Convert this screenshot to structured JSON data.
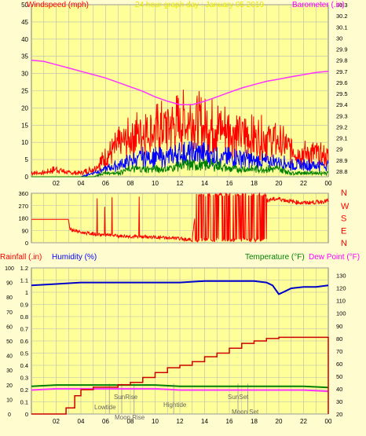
{
  "colors": {
    "background": "#fffdd0",
    "plot_bg": "#ffff99",
    "grid": "#b8b8b8",
    "axis": "#7f7f7f",
    "tick_text": "#000000",
    "wind_label": "#ff0000",
    "title": "#e6e600",
    "baro_label": "#ff00ff",
    "nwsen": "#ff0000",
    "rain_label": "#ff0000",
    "humidity_label": "#0000ff",
    "temp_label": "#008000",
    "dew_label": "#ff00ff",
    "event_text": "#666666"
  },
  "chart_data": [
    {
      "id": "wind_baro",
      "type": "line",
      "title": "24 hour graph day : January 05 2019",
      "left_label": "Windspeed (mph)",
      "right_label": "Barometer (.in)",
      "x_tick_labels": [
        "02",
        "04",
        "06",
        "08",
        "10",
        "12",
        "14",
        "16",
        "18",
        "20",
        "22",
        "00"
      ],
      "y_left_ticks": [
        "0",
        "5",
        "10",
        "15",
        "20",
        "25",
        "30",
        "35",
        "40",
        "45",
        "50"
      ],
      "y_left_range": [
        0,
        50
      ],
      "y_right_ticks": [
        "28.8",
        "28.9",
        "29",
        "29.1",
        "29.2",
        "29.3",
        "29.4",
        "29.5",
        "29.6",
        "29.7",
        "29.8",
        "29.9",
        "30",
        "30.1",
        "30.2",
        "30.3"
      ],
      "y_right_range": [
        28.75,
        30.3
      ],
      "grid": true,
      "series": [
        {
          "role": "gust",
          "color": "#ff0000",
          "x": [
            0,
            1,
            2,
            3,
            4,
            5,
            6,
            7,
            8,
            9,
            10,
            11,
            12,
            13,
            14,
            15,
            16,
            17,
            18,
            19,
            20,
            21,
            22,
            23,
            24
          ],
          "values": [
            1,
            1,
            2,
            1,
            1,
            2,
            5,
            8,
            10,
            12,
            12,
            13,
            14,
            15,
            13,
            13,
            12,
            11,
            10,
            10,
            9,
            7,
            6,
            6,
            5
          ]
        },
        {
          "role": "avg",
          "color": "#0000ff",
          "x": [
            0,
            1,
            2,
            3,
            4,
            5,
            6,
            7,
            8,
            9,
            10,
            11,
            12,
            13,
            14,
            15,
            16,
            17,
            18,
            19,
            20,
            21,
            22,
            23,
            24
          ],
          "values": [
            0,
            0,
            0,
            0,
            0,
            1,
            2,
            3,
            4,
            5,
            5,
            5,
            6,
            6,
            6,
            5,
            5,
            5,
            4,
            4,
            4,
            3,
            3,
            3,
            3
          ]
        },
        {
          "role": "wind",
          "color": "#008000",
          "x": [
            0,
            1,
            2,
            3,
            4,
            5,
            6,
            7,
            8,
            9,
            10,
            11,
            12,
            13,
            14,
            15,
            16,
            17,
            18,
            19,
            20,
            21,
            22,
            23,
            24
          ],
          "values": [
            0,
            0,
            0,
            0,
            0,
            0,
            1,
            1,
            2,
            2,
            2,
            2,
            3,
            3,
            3,
            3,
            2,
            2,
            2,
            2,
            2,
            1,
            1,
            1,
            1
          ]
        },
        {
          "role": "barometer",
          "color": "#ff33ff",
          "axis": "right",
          "x": [
            0,
            1,
            2,
            3,
            4,
            5,
            6,
            7,
            8,
            9,
            10,
            11,
            12,
            13,
            14,
            15,
            16,
            17,
            18,
            19,
            20,
            21,
            22,
            23,
            24
          ],
          "values": [
            29.8,
            29.79,
            29.76,
            29.73,
            29.7,
            29.67,
            29.64,
            29.6,
            29.56,
            29.52,
            29.47,
            29.43,
            29.4,
            29.4,
            29.43,
            29.47,
            29.51,
            29.55,
            29.58,
            29.61,
            29.63,
            29.65,
            29.67,
            29.69,
            29.7
          ]
        }
      ]
    },
    {
      "id": "direction",
      "type": "line",
      "y_left_ticks": [
        "0",
        "90",
        "180",
        "270",
        "360"
      ],
      "y_left_range": [
        0,
        360
      ],
      "right_letters": [
        "N",
        "W",
        "S",
        "E",
        "N"
      ],
      "grid": true,
      "series": [
        {
          "role": "direction",
          "color": "#ff0000",
          "x": [
            0,
            3,
            3.1,
            4,
            5,
            6,
            8,
            10,
            12,
            13,
            13.4,
            14,
            14.5,
            15,
            15.5,
            16,
            16.5,
            17,
            17.5,
            18,
            18.5,
            19,
            20,
            21,
            22,
            23,
            24
          ],
          "values": [
            170,
            170,
            100,
            75,
            65,
            55,
            45,
            40,
            30,
            20,
            340,
            10,
            330,
            20,
            300,
            15,
            320,
            10,
            330,
            20,
            300,
            310,
            320,
            300,
            290,
            295,
            305
          ]
        }
      ]
    },
    {
      "id": "rain_temp",
      "type": "line",
      "left_label": "Rainfall (.in)",
      "humidity_label": "Humidity (%)",
      "temp_label": "Temperature (°F)",
      "dew_label": "Dew Point (°F)",
      "y_rain_ticks": [
        "0",
        "0.1",
        "0.2",
        "0.3",
        "0.4",
        "0.5",
        "0.6",
        "0.7",
        "0.8",
        "0.9",
        "1",
        "1.1",
        "1.2"
      ],
      "y_rain_range": [
        0,
        1.2
      ],
      "y_hum_ticks": [
        "0",
        "10",
        "20",
        "30",
        "40",
        "50",
        "60",
        "70",
        "80",
        "90",
        "100"
      ],
      "y_hum_range": [
        0,
        100
      ],
      "y_temp_ticks": [
        "20",
        "30",
        "40",
        "50",
        "60",
        "70",
        "80",
        "90",
        "100",
        "110",
        "120",
        "130"
      ],
      "y_temp_range": [
        20,
        136
      ],
      "x_tick_labels": [
        "02",
        "04",
        "06",
        "08",
        "10",
        "12",
        "14",
        "16",
        "18",
        "20",
        "22",
        "00"
      ],
      "grid": true,
      "events": [
        {
          "label": "Lowtide",
          "hour": 6.3
        },
        {
          "label": "SunRise",
          "hour": 7.3
        },
        {
          "label": "Moon Rise",
          "hour": 8.3
        },
        {
          "label": "Hightide",
          "hour": 11.5
        },
        {
          "label": "SunSet",
          "hour": 16.7
        },
        {
          "label": "Moon Set",
          "hour": 17.5
        }
      ],
      "series": [
        {
          "role": "humidity",
          "color": "#0000cc",
          "x": [
            0,
            2,
            4,
            6,
            8,
            10,
            12,
            14,
            16,
            18,
            19,
            19.5,
            20,
            20.5,
            21,
            22,
            23,
            24
          ],
          "values": [
            88,
            89,
            90,
            90,
            90,
            90,
            90,
            91,
            91,
            91,
            90,
            88,
            82,
            84,
            86,
            87,
            87,
            88
          ]
        },
        {
          "role": "rain",
          "color": "#cc0000",
          "x": [
            0,
            2.3,
            2.8,
            3.5,
            4,
            5,
            6,
            7,
            8,
            9,
            10,
            11,
            12,
            13,
            14,
            15,
            16,
            17,
            18,
            19,
            20,
            22,
            23.9,
            24
          ],
          "values": [
            0,
            0,
            0.05,
            0.15,
            0.2,
            0.22,
            0.22,
            0.24,
            0.26,
            0.3,
            0.34,
            0.38,
            0.4,
            0.43,
            0.47,
            0.5,
            0.54,
            0.58,
            0.6,
            0.62,
            0.63,
            0.63,
            0.63,
            0
          ]
        },
        {
          "role": "temperature",
          "color": "#008000",
          "x": [
            0,
            2,
            4,
            6,
            8,
            10,
            12,
            14,
            16,
            18,
            20,
            22,
            24
          ],
          "values": [
            42,
            43,
            43,
            43,
            43,
            43,
            42,
            42,
            42,
            42,
            42,
            42,
            41
          ]
        },
        {
          "role": "dewpoint",
          "color": "#ff33ff",
          "x": [
            0,
            2,
            4,
            6,
            8,
            10,
            12,
            14,
            16,
            18,
            20,
            22,
            24
          ],
          "values": [
            39,
            40,
            40,
            40,
            40,
            40,
            39,
            39,
            39,
            39,
            39,
            39,
            38
          ]
        }
      ]
    }
  ]
}
